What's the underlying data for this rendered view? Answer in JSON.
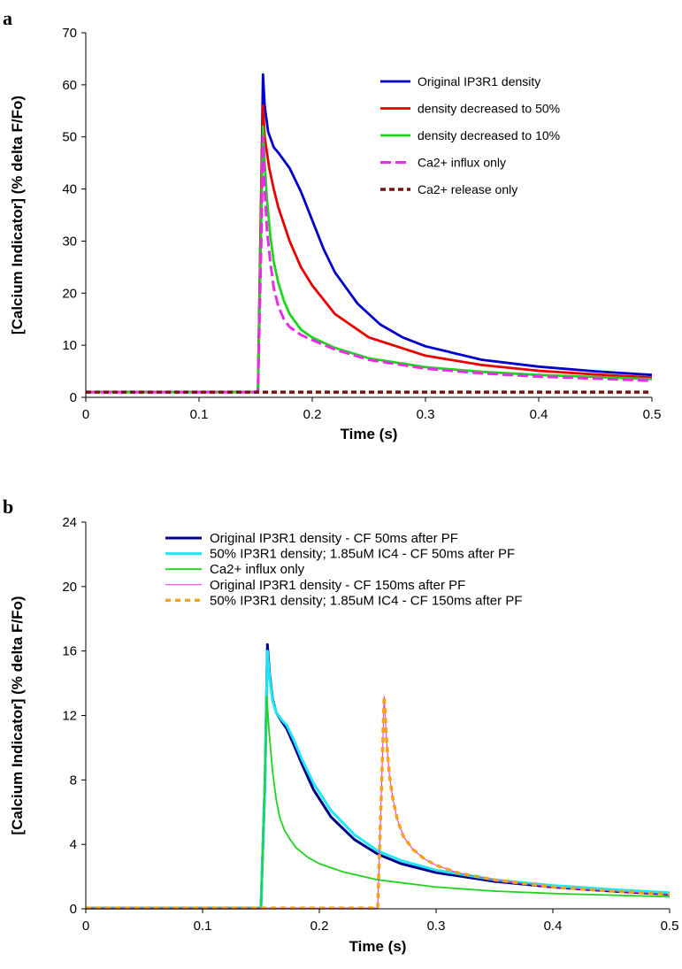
{
  "chart_data": [
    {
      "panel": "a",
      "type": "line",
      "xlabel": "Time (s)",
      "ylabel": "[Calcium Indicator] (% delta F/Fo)",
      "xlim": [
        0,
        0.5
      ],
      "ylim": [
        0,
        70
      ],
      "xticks": [
        "0",
        "0.1",
        "0.2",
        "0.3",
        "0.4",
        "0.5"
      ],
      "yticks": [
        "0",
        "10",
        "20",
        "30",
        "40",
        "50",
        "60",
        "70"
      ],
      "legend_position": "top-right",
      "series": [
        {
          "name": "Original IP3R1 density",
          "color": "#0000cc",
          "style": "solid",
          "x": [
            0,
            0.152,
            0.155,
            0.1565,
            0.158,
            0.161,
            0.166,
            0.17,
            0.18,
            0.19,
            0.2,
            0.21,
            0.22,
            0.24,
            0.26,
            0.28,
            0.3,
            0.35,
            0.4,
            0.45,
            0.5
          ],
          "y": [
            1,
            1,
            40,
            62,
            56,
            51,
            48,
            47,
            44,
            39.5,
            34,
            28.5,
            24,
            18,
            14,
            11.5,
            9.8,
            7.2,
            5.9,
            5,
            4.3
          ]
        },
        {
          "name": "density decreased to 50%",
          "color": "#e60000",
          "style": "solid",
          "x": [
            0,
            0.152,
            0.155,
            0.1565,
            0.158,
            0.162,
            0.166,
            0.17,
            0.18,
            0.19,
            0.2,
            0.22,
            0.25,
            0.3,
            0.35,
            0.4,
            0.45,
            0.5
          ],
          "y": [
            1,
            1,
            40,
            56,
            50,
            44,
            40,
            36.5,
            30,
            25,
            21.5,
            16,
            11.5,
            8,
            6.2,
            5.1,
            4.4,
            3.8
          ]
        },
        {
          "name": "density decreased to 10%",
          "color": "#1ed41e",
          "style": "solid",
          "x": [
            0,
            0.152,
            0.155,
            0.1565,
            0.158,
            0.16,
            0.163,
            0.166,
            0.17,
            0.175,
            0.18,
            0.19,
            0.2,
            0.22,
            0.25,
            0.3,
            0.35,
            0.4,
            0.45,
            0.5
          ],
          "y": [
            1,
            1,
            35,
            52,
            45,
            38,
            31,
            26,
            22,
            18.5,
            16,
            13,
            11.5,
            9.5,
            7.5,
            5.8,
            4.9,
            4.3,
            3.9,
            3.5
          ]
        },
        {
          "name": "Ca2+ influx only",
          "color": "#e62ee6",
          "style": "dashed",
          "x": [
            0,
            0.152,
            0.155,
            0.1565,
            0.158,
            0.16,
            0.163,
            0.166,
            0.17,
            0.175,
            0.18,
            0.19,
            0.2,
            0.22,
            0.25,
            0.3,
            0.35,
            0.4,
            0.45,
            0.5
          ],
          "y": [
            1,
            1,
            30,
            50,
            40,
            32,
            26,
            21,
            17.5,
            15,
            13.5,
            12,
            11,
            9.2,
            7.2,
            5.5,
            4.6,
            4,
            3.6,
            3.2
          ]
        },
        {
          "name": "Ca2+ release only",
          "color": "#7a1010",
          "style": "dotted",
          "x": [
            0,
            0.5
          ],
          "y": [
            1,
            1
          ]
        }
      ]
    },
    {
      "panel": "b",
      "type": "line",
      "xlabel": "Time (s)",
      "ylabel": "[Calcium Indicator] (% delta F/Fo)",
      "xlim": [
        0,
        0.5
      ],
      "ylim": [
        0,
        24
      ],
      "xticks": [
        "0",
        "0.1",
        "0.2",
        "0.3",
        "0.4",
        "0.5"
      ],
      "yticks": [
        "0",
        "4",
        "8",
        "12",
        "16",
        "20",
        "24"
      ],
      "legend_position": "top",
      "series": [
        {
          "name": "Original IP3R1 density - CF 50ms after PF",
          "color": "#00008b",
          "style": "solid",
          "width": 3,
          "x": [
            0,
            0.15,
            0.1535,
            0.1555,
            0.1575,
            0.16,
            0.163,
            0.168,
            0.172,
            0.178,
            0.185,
            0.195,
            0.21,
            0.23,
            0.25,
            0.27,
            0.3,
            0.35,
            0.4,
            0.45,
            0.5
          ],
          "y": [
            0.05,
            0.05,
            8,
            16.4,
            14.5,
            13,
            12.2,
            11.6,
            11.2,
            10.2,
            9,
            7.4,
            5.7,
            4.3,
            3.4,
            2.8,
            2.25,
            1.7,
            1.35,
            1.1,
            0.9
          ]
        },
        {
          "name": "50% IP3R1 density; 1.85uM IC4 - CF 50ms after PF",
          "color": "#1ee6f5",
          "style": "solid",
          "width": 3,
          "x": [
            0,
            0.15,
            0.1535,
            0.1555,
            0.1575,
            0.16,
            0.163,
            0.168,
            0.172,
            0.178,
            0.185,
            0.195,
            0.21,
            0.23,
            0.25,
            0.27,
            0.3,
            0.35,
            0.4,
            0.45,
            0.5
          ],
          "y": [
            0.05,
            0.05,
            8,
            16,
            14.3,
            12.9,
            12.2,
            11.7,
            11.4,
            10.5,
            9.3,
            7.8,
            6.1,
            4.6,
            3.6,
            3,
            2.4,
            1.8,
            1.45,
            1.2,
            1
          ]
        },
        {
          "name": "Ca2+ influx only",
          "color": "#1ed41e",
          "style": "solid",
          "width": 1.8,
          "x": [
            0,
            0.15,
            0.153,
            0.155,
            0.157,
            0.16,
            0.163,
            0.166,
            0.17,
            0.175,
            0.18,
            0.19,
            0.2,
            0.22,
            0.25,
            0.3,
            0.35,
            0.4,
            0.45,
            0.5
          ],
          "y": [
            0.05,
            0.05,
            7,
            13.2,
            11,
            8.5,
            6.8,
            5.7,
            4.9,
            4.3,
            3.8,
            3.2,
            2.8,
            2.3,
            1.8,
            1.35,
            1.1,
            0.95,
            0.85,
            0.75
          ]
        },
        {
          "name": "Original IP3R1 density - CF 150ms after PF",
          "color": "#e62ee6",
          "style": "solid",
          "width": 1,
          "x": [
            0,
            0.25,
            0.2535,
            0.2555,
            0.2575,
            0.26,
            0.263,
            0.267,
            0.272,
            0.28,
            0.29,
            0.3,
            0.32,
            0.35,
            0.4,
            0.45,
            0.5
          ],
          "y": [
            0.05,
            0.05,
            8,
            13.2,
            10.5,
            8.3,
            6.8,
            5.5,
            4.5,
            3.7,
            3.1,
            2.7,
            2.2,
            1.8,
            1.35,
            1.1,
            0.9
          ]
        },
        {
          "name": "50% IP3R1 density; 1.85uM IC4 - CF 150ms after PF",
          "color": "#f7a21b",
          "style": "dashed",
          "width": 3.5,
          "x": [
            0,
            0.25,
            0.2535,
            0.2555,
            0.2575,
            0.26,
            0.263,
            0.267,
            0.272,
            0.28,
            0.29,
            0.3,
            0.32,
            0.35,
            0.4,
            0.45,
            0.5
          ],
          "y": [
            0.05,
            0.05,
            8,
            13.2,
            10.5,
            8.3,
            6.8,
            5.5,
            4.5,
            3.7,
            3.1,
            2.7,
            2.2,
            1.8,
            1.35,
            1.1,
            0.9
          ]
        }
      ]
    }
  ]
}
